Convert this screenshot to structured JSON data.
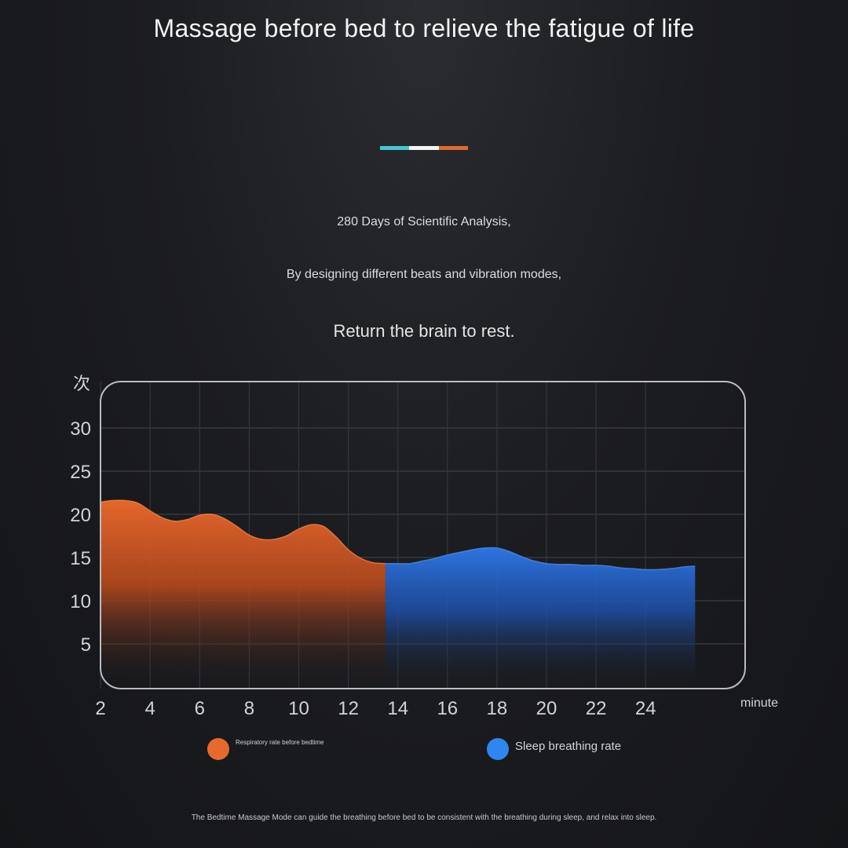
{
  "header": {
    "title": "Massage before bed to relieve the fatigue of life"
  },
  "divider_colors": [
    "#47c6cf",
    "#f4f4f4",
    "#e06a2f"
  ],
  "intro": {
    "line1": "280 Days of Scientific Analysis,",
    "line2": "By designing different beats and vibration modes,",
    "line3": "Return the brain to rest."
  },
  "chart_data": {
    "type": "area",
    "ylabel": "次",
    "xlabel": "minute",
    "ylim": [
      0,
      32
    ],
    "xlim": [
      0,
      26
    ],
    "yticks": [
      5,
      10,
      15,
      20,
      25,
      30
    ],
    "xticks": [
      2,
      4,
      6,
      8,
      10,
      12,
      14,
      16,
      18,
      20,
      22,
      24
    ],
    "grid": true,
    "series": [
      {
        "name": "Respiratory rate before bedtime",
        "color": "#e0642a",
        "x": [
          0,
          0.5,
          1,
          1.5,
          2,
          2.5,
          3,
          3.5,
          4,
          4.5,
          5,
          5.5,
          6,
          6.5,
          7,
          7.5,
          8,
          8.5,
          9,
          9.5,
          10,
          10.5,
          11,
          11.5,
          12,
          12.5,
          13,
          13.5
        ],
        "y": [
          18.7,
          19.1,
          20.0,
          20.9,
          21.4,
          21.6,
          21.6,
          21.3,
          20.4,
          19.6,
          19.2,
          19.4,
          19.9,
          20.0,
          19.5,
          18.6,
          17.6,
          17.1,
          17.1,
          17.5,
          18.3,
          18.8,
          18.6,
          17.4,
          15.9,
          14.9,
          14.4,
          14.3
        ]
      },
      {
        "name": "Sleep breathing rate",
        "color": "#2f7fe8",
        "x": [
          13.5,
          14,
          14.5,
          15,
          15.5,
          16,
          16.5,
          17,
          17.5,
          18,
          18.5,
          19,
          19.5,
          20,
          20.5,
          21,
          21.5,
          22,
          22.5,
          23,
          23.5,
          24,
          24.5,
          25,
          25.5,
          26
        ],
        "y": [
          14.3,
          14.3,
          14.3,
          14.6,
          14.9,
          15.3,
          15.6,
          15.9,
          16.1,
          16.1,
          15.7,
          15.1,
          14.6,
          14.3,
          14.2,
          14.2,
          14.1,
          14.1,
          14.0,
          13.8,
          13.7,
          13.6,
          13.6,
          13.7,
          13.9,
          14.0
        ]
      }
    ]
  },
  "legend": [
    {
      "label": "Respiratory rate before bedtime",
      "color": "#e8692d"
    },
    {
      "label": "Sleep breathing rate",
      "color": "#2f86f0"
    }
  ],
  "footer": "The Bedtime Massage Mode can guide the breathing before bed to be consistent with the breathing during sleep, and relax into sleep."
}
